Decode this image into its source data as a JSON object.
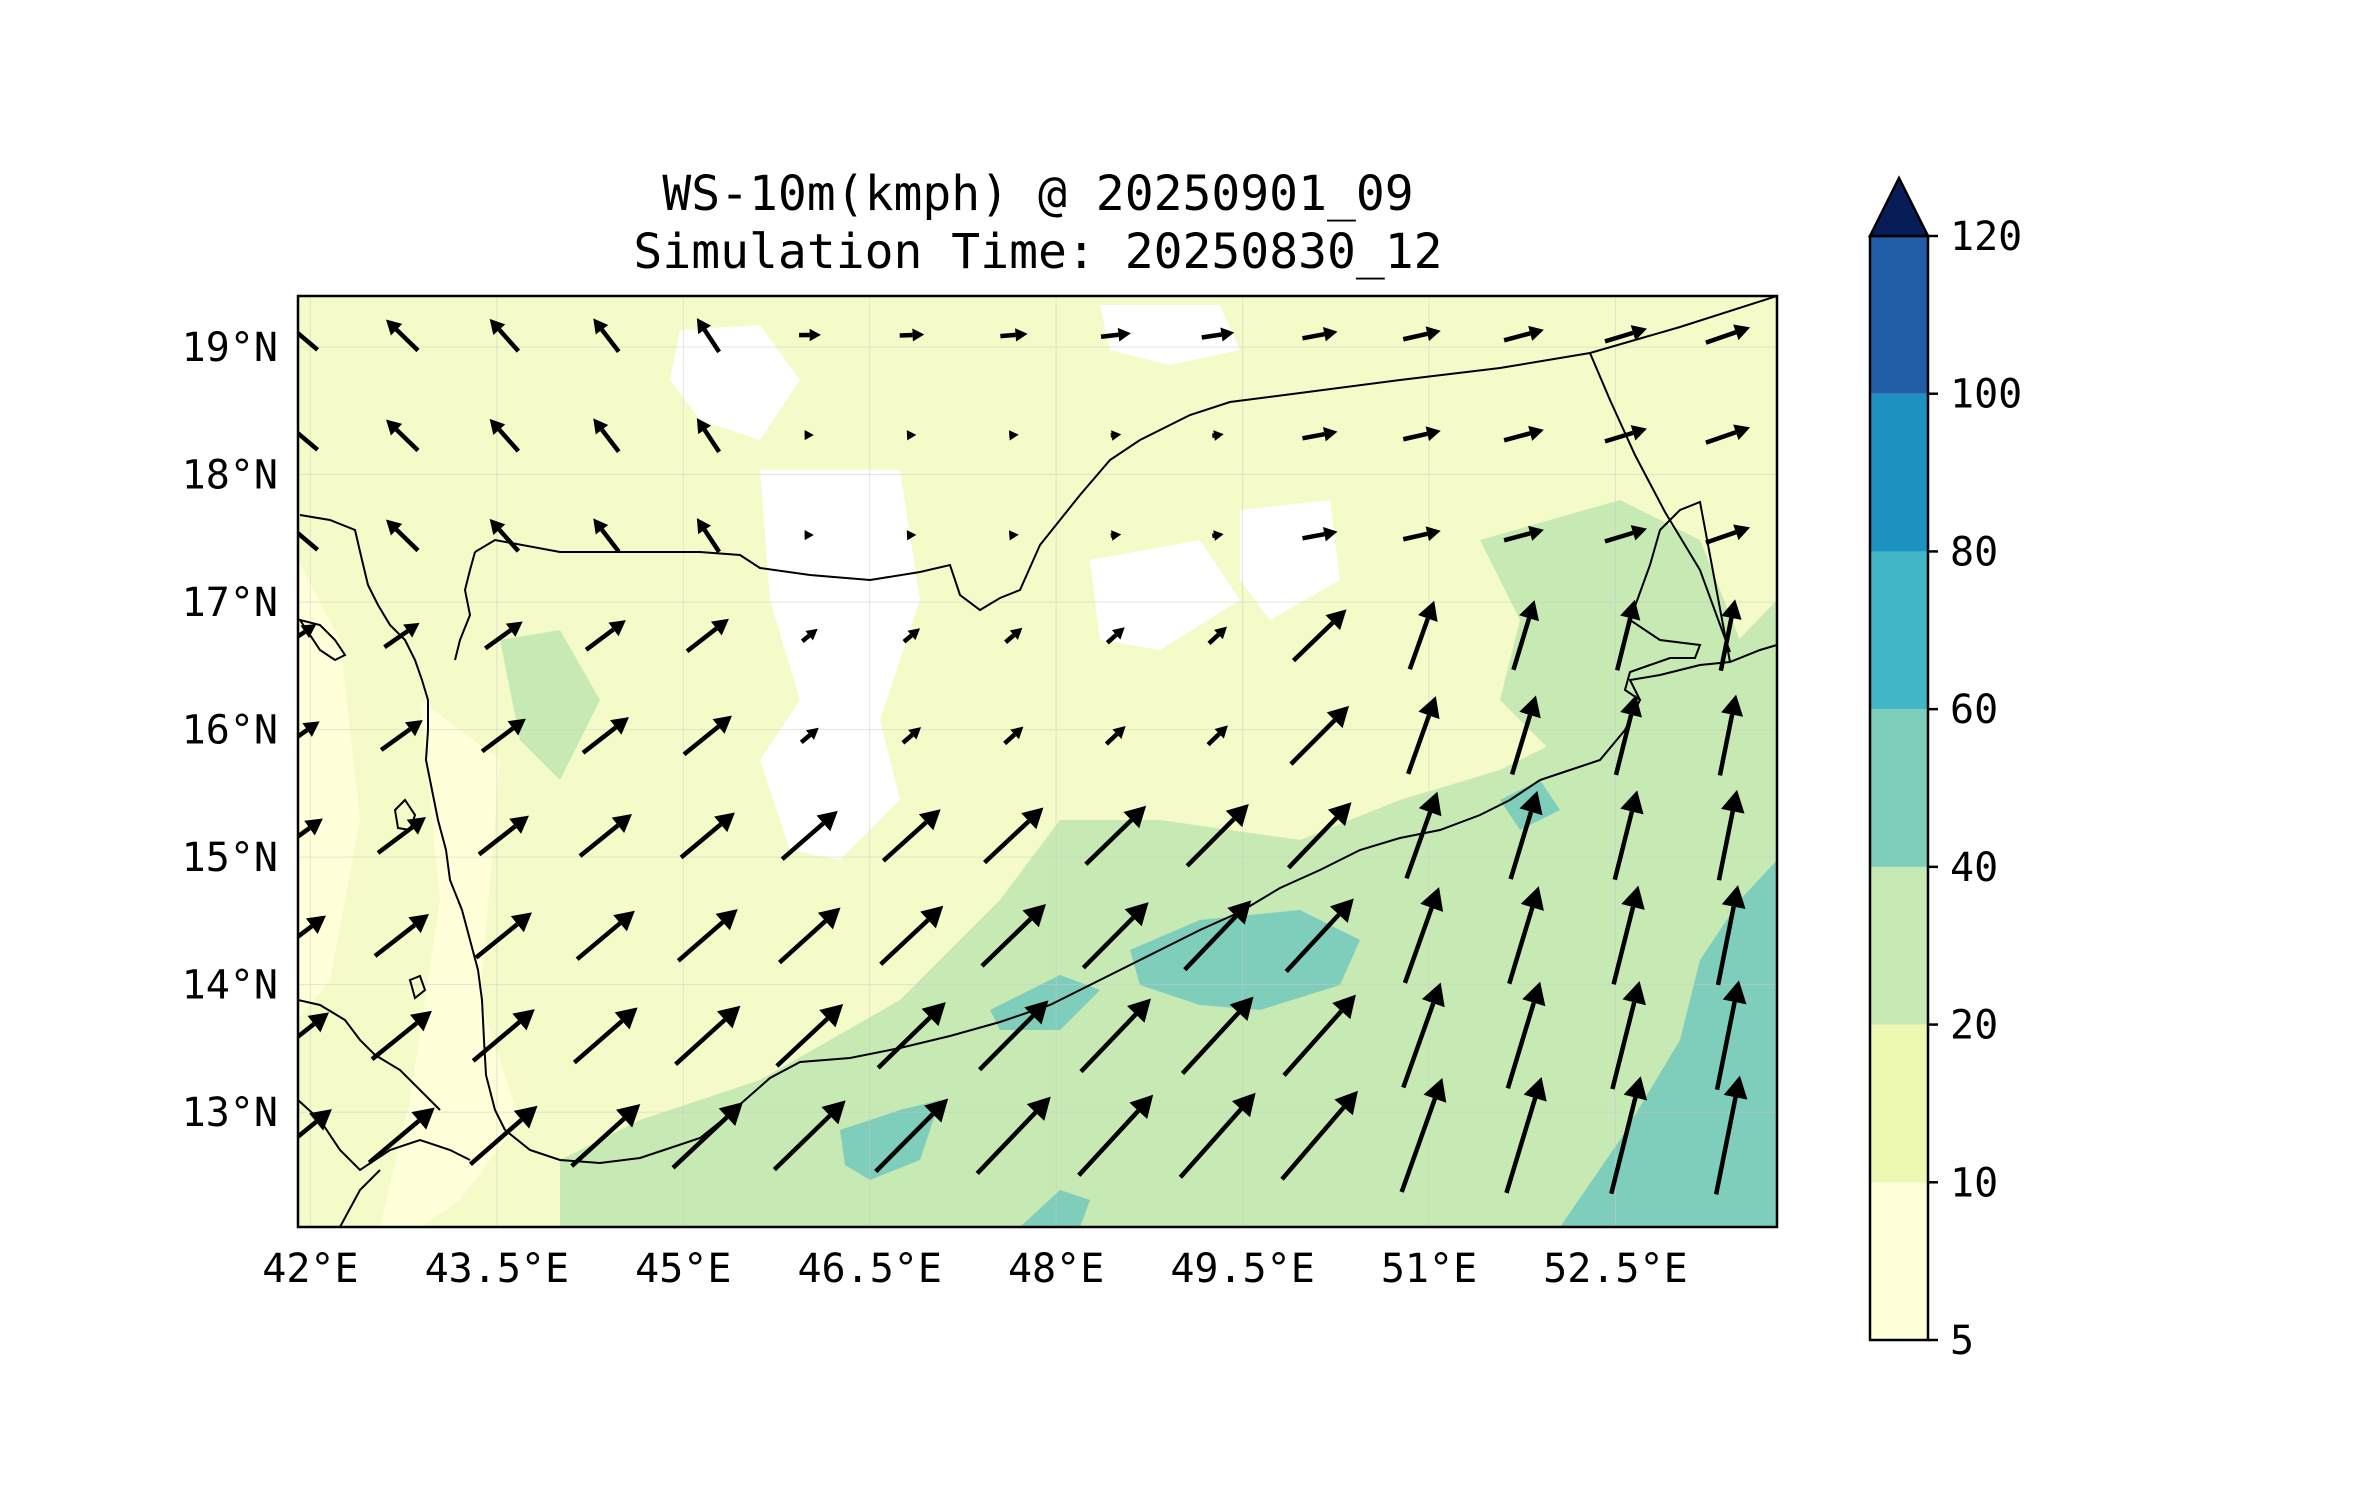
{
  "title": {
    "line1": "WS-10m(kmph) @ 20250901_09",
    "line2": "Simulation Time: 20250830_12"
  },
  "axes": {
    "x_ticks": [
      "42°E",
      "43.5°E",
      "45°E",
      "46.5°E",
      "48°E",
      "49.5°E",
      "51°E",
      "52.5°E"
    ],
    "y_ticks": [
      "19°N",
      "18°N",
      "17°N",
      "16°N",
      "15°N",
      "14°N",
      "13°N"
    ],
    "lon_range": [
      41.9,
      53.8
    ],
    "lat_range": [
      12.1,
      19.4
    ],
    "grid": true
  },
  "colorbar": {
    "ticks": [
      "5",
      "10",
      "20",
      "40",
      "60",
      "80",
      "100",
      "120"
    ],
    "colors": [
      "#ffffd9",
      "#edf8b1",
      "#c7e9b4",
      "#7fcdbb",
      "#41b6c4",
      "#1d91c0",
      "#225ea8",
      "#0c2c84"
    ],
    "extend_color": "#081d58",
    "extend": "max"
  },
  "map_colors": {
    "background_fill": "#f4fbc8",
    "land_line": "#000000"
  },
  "chart_data": {
    "type": "quiver-contourf",
    "variable": "WS-10m(kmph)",
    "levels": [
      5,
      10,
      20,
      40,
      60,
      80,
      100,
      120
    ]
  }
}
